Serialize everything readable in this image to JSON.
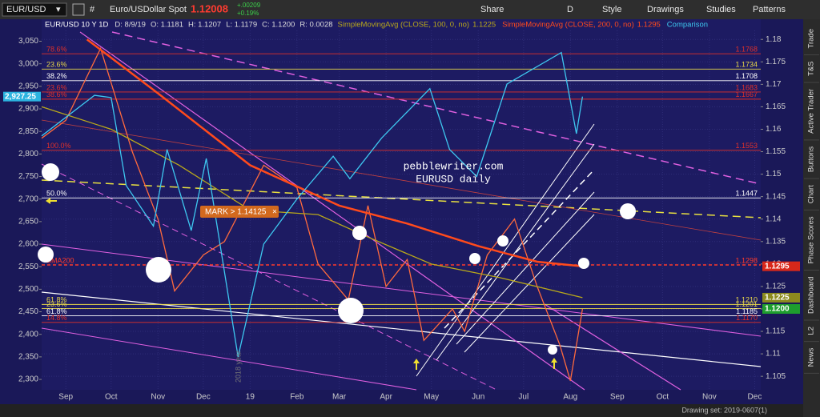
{
  "toolbar": {
    "symbol": "EUR/USD",
    "description": "Euro/USDollar Spot",
    "last": "1.12008",
    "change": "+.00209",
    "change_pct": "+0.19%",
    "buttons": [
      "Share",
      "D",
      "Style",
      "Drawings",
      "Studies",
      "Patterns"
    ]
  },
  "legend": {
    "ohlc": [
      "D: 8/9/19",
      "O: 1.1181",
      "H: 1.1207",
      "L: 1.1179",
      "C: 1.1200",
      "R: 0.0028"
    ]
  },
  "chart_data": {
    "type": "line",
    "xlim": [
      "2018-08-16",
      "2019-12-05"
    ],
    "xticks": [
      {
        "value": "2018-09-01",
        "label": "Sep"
      },
      {
        "value": "2018-10-01",
        "label": "Oct"
      },
      {
        "value": "2018-11-01",
        "label": "Nov"
      },
      {
        "value": "2018-12-01",
        "label": "Dec"
      },
      {
        "value": "2019-01-01",
        "label": "19"
      },
      {
        "value": "2019-02-01",
        "label": "Feb"
      },
      {
        "value": "2019-03-01",
        "label": "Mar"
      },
      {
        "value": "2019-04-01",
        "label": "Apr"
      },
      {
        "value": "2019-05-01",
        "label": "May"
      },
      {
        "value": "2019-06-01",
        "label": "Jun"
      },
      {
        "value": "2019-07-01",
        "label": "Jul"
      },
      {
        "value": "2019-08-01",
        "label": "Aug"
      },
      {
        "value": "2019-09-01",
        "label": "Sep"
      },
      {
        "value": "2019-10-01",
        "label": "Oct"
      },
      {
        "value": "2019-11-01",
        "label": "Nov"
      },
      {
        "value": "2019-12-01",
        "label": "Dec"
      }
    ],
    "ylim": [
      1.102,
      1.182
    ],
    "yticks": [
      1.105,
      1.11,
      1.115,
      1.12,
      1.125,
      1.13,
      1.135,
      1.14,
      1.145,
      1.15,
      1.155,
      1.16,
      1.165,
      1.17,
      1.175,
      1.18
    ],
    "y2lim": [
      2277,
      3074
    ],
    "y2ticks": [
      {
        "value": 2300,
        "label": "2,300"
      },
      {
        "value": 2350,
        "label": "2,350"
      },
      {
        "value": 2400,
        "label": "2,400"
      },
      {
        "value": 2450,
        "label": "2,450"
      },
      {
        "value": 2500,
        "label": "2,500"
      },
      {
        "value": 2550,
        "label": "2,550"
      },
      {
        "value": 2600,
        "label": "2,600"
      },
      {
        "value": 2650,
        "label": "2,650"
      },
      {
        "value": 2700,
        "label": "2,700"
      },
      {
        "value": 2750,
        "label": "2,750"
      },
      {
        "value": 2800,
        "label": "2,800"
      },
      {
        "value": 2850,
        "label": "2,850"
      },
      {
        "value": 2900,
        "label": "2,900"
      },
      {
        "value": 2950,
        "label": "2,950"
      },
      {
        "value": 3000,
        "label": "3,000"
      },
      {
        "value": 3050,
        "label": "3,050"
      }
    ],
    "grid": true,
    "series": [
      {
        "name": "EUR/USD 10 Y 1D",
        "color": "#ff6a3d",
        "x": [
          "2018-08-16",
          "2018-09-01",
          "2018-09-24",
          "2018-10-15",
          "2018-11-01",
          "2018-11-12",
          "2018-12-01",
          "2018-12-15",
          "2019-01-10",
          "2019-02-01",
          "2019-02-15",
          "2019-03-07",
          "2019-03-20",
          "2019-04-01",
          "2019-04-15",
          "2019-04-26",
          "2019-05-15",
          "2019-05-23",
          "2019-06-07",
          "2019-06-25",
          "2019-07-10",
          "2019-07-25",
          "2019-08-01",
          "2019-08-09"
        ],
        "values": [
          1.158,
          1.162,
          1.178,
          1.155,
          1.14,
          1.124,
          1.132,
          1.135,
          1.152,
          1.147,
          1.13,
          1.122,
          1.143,
          1.125,
          1.131,
          1.113,
          1.12,
          1.115,
          1.132,
          1.14,
          1.125,
          1.112,
          1.104,
          1.12
        ],
        "last": {
          "value": 1.12,
          "label": "1.1200"
        },
        "last_color": "#1e9e2e"
      },
      {
        "name": "SimpleMovingAvg (CLOSE, 100, 0, no)",
        "color": "#b9a81a",
        "x": [
          "2018-08-16",
          "2018-10-01",
          "2018-11-15",
          "2019-01-01",
          "2019-02-15",
          "2019-03-20",
          "2019-05-01",
          "2019-06-15",
          "2019-08-09"
        ],
        "values": [
          1.165,
          1.16,
          1.152,
          1.142,
          1.141,
          1.136,
          1.13,
          1.127,
          1.1225
        ],
        "last": {
          "value": 1.1225,
          "label": "1.1225"
        },
        "last_color": "#8c8a1e"
      },
      {
        "name": "SimpleMovingAvg (CLOSE, 200, 0, no)",
        "color": "#ff4a1c",
        "x": [
          "2018-09-15",
          "2018-11-01",
          "2019-01-01",
          "2019-03-01",
          "2019-04-15",
          "2019-06-01",
          "2019-07-10",
          "2019-08-09"
        ],
        "values": [
          1.18,
          1.168,
          1.152,
          1.143,
          1.139,
          1.134,
          1.1305,
          1.1295
        ],
        "last": {
          "value": 1.1295,
          "label": "1.1295"
        },
        "last_color": "#d8281a"
      },
      {
        "name": "Comparison",
        "color": "#3ec8f0",
        "axis": "y2",
        "x": [
          "2018-08-16",
          "2018-09-20",
          "2018-10-01",
          "2018-10-11",
          "2018-10-29",
          "2018-11-07",
          "2018-11-23",
          "2018-12-03",
          "2018-12-24",
          "2019-01-10",
          "2019-02-01",
          "2019-02-25",
          "2019-03-08",
          "2019-03-29",
          "2019-04-30",
          "2019-05-13",
          "2019-05-31",
          "2019-06-20",
          "2019-07-26",
          "2019-08-05",
          "2019-08-09"
        ],
        "values": [
          2840,
          2930,
          2925,
          2730,
          2640,
          2810,
          2630,
          2790,
          2350,
          2600,
          2700,
          2795,
          2745,
          2835,
          2945,
          2810,
          2750,
          2955,
          3025,
          2845,
          2927.25
        ],
        "last": {
          "value": 2927.25,
          "label": "2,927.25"
        },
        "last_color": "#2bb3e0"
      }
    ],
    "levels": [
      {
        "value": 1.1768,
        "label": "1.1768",
        "fib": "78.6%",
        "color": "#e0302a"
      },
      {
        "value": 1.1734,
        "label": "1.1734",
        "fib": "23.6%",
        "color": "#e8d84a"
      },
      {
        "value": 1.1708,
        "label": "1.1708",
        "fib": "38.2%",
        "color": "#ffffff"
      },
      {
        "value": 1.1683,
        "label": "1.1683",
        "fib": "23.6%",
        "color": "#e0302a"
      },
      {
        "value": 1.1667,
        "label": "1.1667",
        "fib": "38.6%",
        "color": "#e0302a"
      },
      {
        "value": 1.1553,
        "label": "1.1553",
        "fib": "100.0%",
        "color": "#e0302a"
      },
      {
        "value": 1.1447,
        "label": "1.1447",
        "fib": "50.0%",
        "color": "#ffffff"
      },
      {
        "value": 1.1298,
        "label": "1.1298",
        "fib": "SMA200",
        "color": "#ff3a2a",
        "dashed": true
      },
      {
        "value": 1.121,
        "label": "1.1210",
        "fib": "61.8%",
        "color": "#e8d84a"
      },
      {
        "value": 1.1201,
        "label": "1.1201",
        "fib": "23.6%",
        "color": "#e8d84a"
      },
      {
        "value": 1.1185,
        "label": "1.1185",
        "fib": "61.8%",
        "color": "#ffffff"
      },
      {
        "value": 1.117,
        "label": "1.1170",
        "fib": "14.8%",
        "color": "#e0302a"
      }
    ],
    "mark_label": "MARK > 1.14125",
    "watermark": [
      "pebblewriter.com",
      "EURUSD daily"
    ],
    "year_note": "2018 year"
  },
  "sidebar_tabs": [
    "Trade",
    "T&S",
    "Active Trader",
    "Buttons",
    "Chart",
    "Phase Scores",
    "Dashboard",
    "L2",
    "News"
  ],
  "footer": {
    "drawing_set": "Drawing set: 2019-0607(1)"
  }
}
